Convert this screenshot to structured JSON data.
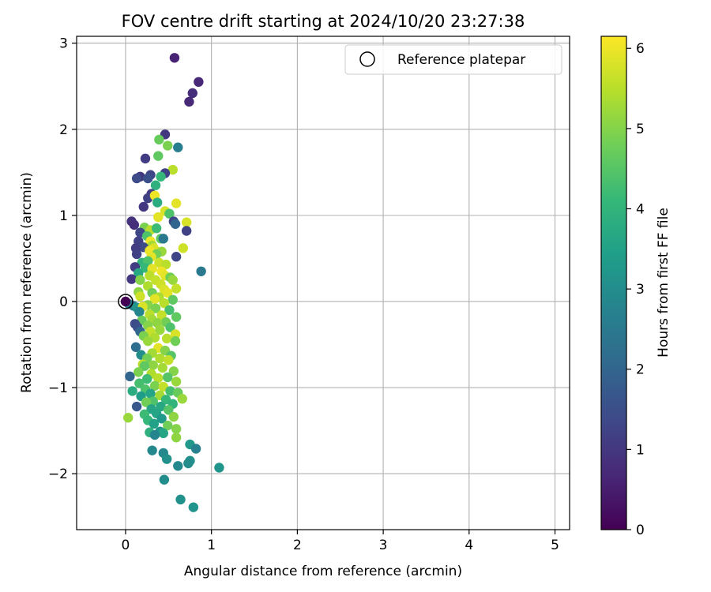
{
  "chart_data": {
    "type": "scatter",
    "title": "FOV centre drift starting at 2024/10/20 23:27:38",
    "xlabel": "Angular distance from reference (arcmin)",
    "ylabel": "Rotation from reference (arcmin)",
    "xlim": [
      -0.57,
      5.17
    ],
    "ylim": [
      -2.65,
      3.08
    ],
    "xticks": [
      0,
      1,
      2,
      3,
      4,
      5
    ],
    "xtick_labels": [
      "0",
      "1",
      "2",
      "3",
      "4",
      "5"
    ],
    "yticks": [
      -2,
      -1,
      0,
      1,
      2,
      3
    ],
    "ytick_labels": [
      "−2",
      "−1",
      "0",
      "1",
      "2",
      "3"
    ],
    "grid": true,
    "legend": {
      "placement": "top-right",
      "entries": [
        {
          "label": "Reference platepar",
          "marker": "open-circle"
        }
      ]
    },
    "reference": {
      "x": 0,
      "y": 0
    },
    "colorbar": {
      "label": "Hours from first FF file",
      "colormap": "viridis",
      "range": [
        0,
        6.15
      ],
      "ticks": [
        0,
        1,
        2,
        3,
        4,
        5,
        6
      ],
      "tick_labels": [
        "0",
        "1",
        "2",
        "3",
        "4",
        "5",
        "6"
      ],
      "stops": [
        "#440154",
        "#482878",
        "#3e4989",
        "#31688e",
        "#26828e",
        "#1f9e89",
        "#35b779",
        "#6ece58",
        "#b5de2b",
        "#fde725"
      ]
    },
    "points": [
      [
        0.57,
        2.83,
        0.6
      ],
      [
        0.85,
        2.55,
        0.7
      ],
      [
        0.78,
        2.42,
        0.8
      ],
      [
        0.74,
        2.32,
        0.7
      ],
      [
        0.46,
        1.94,
        1.0
      ],
      [
        0.39,
        1.88,
        4.7
      ],
      [
        0.49,
        1.81,
        4.9
      ],
      [
        0.61,
        1.79,
        2.6
      ],
      [
        0.38,
        1.69,
        4.6
      ],
      [
        0.23,
        1.66,
        1.1
      ],
      [
        0.55,
        1.53,
        5.5
      ],
      [
        0.46,
        1.49,
        1.2
      ],
      [
        0.29,
        1.47,
        1.3
      ],
      [
        0.17,
        1.45,
        1.0
      ],
      [
        0.41,
        1.45,
        4.1
      ],
      [
        0.13,
        1.43,
        1.4
      ],
      [
        0.26,
        1.43,
        1.5
      ],
      [
        0.35,
        1.35,
        3.9
      ],
      [
        0.3,
        1.25,
        1.1
      ],
      [
        0.26,
        1.2,
        1.2
      ],
      [
        0.34,
        1.23,
        6.0
      ],
      [
        0.37,
        1.15,
        3.8
      ],
      [
        0.59,
        1.14,
        5.9
      ],
      [
        0.21,
        1.1,
        1.0
      ],
      [
        0.46,
        1.05,
        5.8
      ],
      [
        0.51,
        1.02,
        4.4
      ],
      [
        0.38,
        0.98,
        5.9
      ],
      [
        0.56,
        0.93,
        1.3
      ],
      [
        0.58,
        0.9,
        2.0
      ],
      [
        0.07,
        0.93,
        0.9
      ],
      [
        0.1,
        0.89,
        0.8
      ],
      [
        0.22,
        0.86,
        4.9
      ],
      [
        0.29,
        0.83,
        5.5
      ],
      [
        0.36,
        0.85,
        4.2
      ],
      [
        0.71,
        0.92,
        5.8
      ],
      [
        0.71,
        0.82,
        1.2
      ],
      [
        0.17,
        0.8,
        1.3
      ],
      [
        0.25,
        0.76,
        4.4
      ],
      [
        0.41,
        0.73,
        4.6
      ],
      [
        0.44,
        0.73,
        2.5
      ],
      [
        0.29,
        0.7,
        6.0
      ],
      [
        0.15,
        0.7,
        1.2
      ],
      [
        0.31,
        0.65,
        5.3
      ],
      [
        0.33,
        0.62,
        5.8
      ],
      [
        0.21,
        0.63,
        1.4
      ],
      [
        0.12,
        0.62,
        1.1
      ],
      [
        0.67,
        0.62,
        5.7
      ],
      [
        0.28,
        0.59,
        6.0
      ],
      [
        0.42,
        0.58,
        5.2
      ],
      [
        0.13,
        0.55,
        1.2
      ],
      [
        0.36,
        0.55,
        4.8
      ],
      [
        0.3,
        0.52,
        5.9
      ],
      [
        0.59,
        0.52,
        1.3
      ],
      [
        0.19,
        0.45,
        4.0
      ],
      [
        0.26,
        0.47,
        4.4
      ],
      [
        0.39,
        0.45,
        5.7
      ],
      [
        0.47,
        0.43,
        5.5
      ],
      [
        0.11,
        0.4,
        1.1
      ],
      [
        0.23,
        0.39,
        4.1
      ],
      [
        0.31,
        0.38,
        5.9
      ],
      [
        0.42,
        0.35,
        6.0
      ],
      [
        0.88,
        0.35,
        2.5
      ],
      [
        0.15,
        0.33,
        3.7
      ],
      [
        0.28,
        0.3,
        5.5
      ],
      [
        0.46,
        0.3,
        5.9
      ],
      [
        0.52,
        0.28,
        4.8
      ],
      [
        0.07,
        0.26,
        1.0
      ],
      [
        0.17,
        0.25,
        5.0
      ],
      [
        0.35,
        0.25,
        5.6
      ],
      [
        0.55,
        0.25,
        5.2
      ],
      [
        0.41,
        0.2,
        5.7
      ],
      [
        0.26,
        0.18,
        5.4
      ],
      [
        0.59,
        0.15,
        5.6
      ],
      [
        0.45,
        0.14,
        5.8
      ],
      [
        0.15,
        0.11,
        5.1
      ],
      [
        0.31,
        0.1,
        4.8
      ],
      [
        0.49,
        0.1,
        5.9
      ],
      [
        0.17,
        0.06,
        5.7
      ],
      [
        0.39,
        0.05,
        5.4
      ],
      [
        0.55,
        0.02,
        4.6
      ],
      [
        0.34,
        0.03,
        5.9
      ],
      [
        0.45,
        -0.02,
        5.5
      ],
      [
        0.26,
        -0.04,
        5.0
      ],
      [
        0.04,
        -0.03,
        2.6
      ],
      [
        0.09,
        -0.05,
        2.4
      ],
      [
        0.13,
        -0.07,
        3.2
      ],
      [
        0.2,
        -0.06,
        5.8
      ],
      [
        0.35,
        -0.08,
        4.9
      ],
      [
        0.51,
        -0.1,
        4.3
      ],
      [
        0.16,
        -0.12,
        2.8
      ],
      [
        0.28,
        -0.15,
        5.5
      ],
      [
        0.42,
        -0.16,
        5.6
      ],
      [
        0.59,
        -0.18,
        4.6
      ],
      [
        0.31,
        -0.21,
        5.3
      ],
      [
        0.19,
        -0.22,
        4.7
      ],
      [
        0.47,
        -0.24,
        4.8
      ],
      [
        0.37,
        -0.25,
        5.1
      ],
      [
        0.11,
        -0.26,
        1.4
      ],
      [
        0.26,
        -0.28,
        5.0
      ],
      [
        0.14,
        -0.3,
        1.5
      ],
      [
        0.52,
        -0.3,
        4.4
      ],
      [
        0.4,
        -0.33,
        5.2
      ],
      [
        0.29,
        -0.35,
        5.6
      ],
      [
        0.17,
        -0.35,
        2.0
      ],
      [
        0.58,
        -0.38,
        5.8
      ],
      [
        0.21,
        -0.4,
        4.9
      ],
      [
        0.34,
        -0.42,
        5.4
      ],
      [
        0.48,
        -0.43,
        5.5
      ],
      [
        0.58,
        -0.46,
        4.8
      ],
      [
        0.26,
        -0.46,
        5.2
      ],
      [
        0.12,
        -0.53,
        2.2
      ],
      [
        0.38,
        -0.54,
        5.9
      ],
      [
        0.46,
        -0.57,
        5.0
      ],
      [
        0.31,
        -0.6,
        5.3
      ],
      [
        0.18,
        -0.62,
        3.0
      ],
      [
        0.53,
        -0.63,
        4.5
      ],
      [
        0.4,
        -0.66,
        5.4
      ],
      [
        0.25,
        -0.66,
        4.8
      ],
      [
        0.5,
        -0.68,
        5.6
      ],
      [
        0.2,
        -0.73,
        5.5
      ],
      [
        0.32,
        -0.74,
        5.1
      ],
      [
        0.43,
        -0.77,
        5.3
      ],
      [
        0.22,
        -0.75,
        4.6
      ],
      [
        0.56,
        -0.81,
        5.0
      ],
      [
        0.15,
        -0.82,
        4.9
      ],
      [
        0.3,
        -0.84,
        5.4
      ],
      [
        0.05,
        -0.87,
        2.0
      ],
      [
        0.38,
        -0.89,
        5.5
      ],
      [
        0.49,
        -0.88,
        4.5
      ],
      [
        0.25,
        -0.9,
        4.2
      ],
      [
        0.59,
        -0.93,
        5.2
      ],
      [
        0.16,
        -0.95,
        4.3
      ],
      [
        0.34,
        -0.98,
        4.9
      ],
      [
        0.44,
        -0.99,
        5.6
      ],
      [
        0.23,
        -1.02,
        4.4
      ],
      [
        0.08,
        -1.04,
        3.8
      ],
      [
        0.52,
        -1.04,
        4.3
      ],
      [
        0.61,
        -1.06,
        4.7
      ],
      [
        0.29,
        -1.07,
        3.6
      ],
      [
        0.4,
        -1.09,
        5.3
      ],
      [
        0.18,
        -1.1,
        3.4
      ],
      [
        0.66,
        -1.13,
        5.2
      ],
      [
        0.47,
        -1.14,
        4.1
      ],
      [
        0.32,
        -1.16,
        4.4
      ],
      [
        0.24,
        -1.17,
        4.8
      ],
      [
        0.55,
        -1.19,
        4.0
      ],
      [
        0.13,
        -1.22,
        1.7
      ],
      [
        0.41,
        -1.22,
        3.7
      ],
      [
        0.3,
        -1.25,
        3.6
      ],
      [
        0.5,
        -1.26,
        4.5
      ],
      [
        0.36,
        -1.3,
        3.6
      ],
      [
        0.22,
        -1.31,
        4.2
      ],
      [
        0.56,
        -1.34,
        5.1
      ],
      [
        0.42,
        -1.36,
        3.3
      ],
      [
        0.03,
        -1.35,
        5.2
      ],
      [
        0.26,
        -1.38,
        4.1
      ],
      [
        0.33,
        -1.42,
        3.5
      ],
      [
        0.49,
        -1.44,
        4.8
      ],
      [
        0.59,
        -1.48,
        5.0
      ],
      [
        0.4,
        -1.51,
        3.2
      ],
      [
        0.28,
        -1.52,
        3.9
      ],
      [
        0.44,
        -1.53,
        3.6
      ],
      [
        0.34,
        -1.55,
        2.8
      ],
      [
        0.59,
        -1.58,
        5.1
      ],
      [
        0.75,
        -1.66,
        3.3
      ],
      [
        0.82,
        -1.71,
        2.7
      ],
      [
        0.31,
        -1.73,
        2.9
      ],
      [
        0.44,
        -1.76,
        2.9
      ],
      [
        0.48,
        -1.83,
        3.1
      ],
      [
        0.75,
        -1.85,
        3.1
      ],
      [
        0.73,
        -1.88,
        3.0
      ],
      [
        0.61,
        -1.91,
        2.9
      ],
      [
        1.09,
        -1.93,
        3.2
      ],
      [
        0.45,
        -2.07,
        3.0
      ],
      [
        0.64,
        -2.3,
        3.1
      ],
      [
        0.79,
        -2.39,
        3.2
      ],
      [
        0.0,
        0.0,
        0.0
      ]
    ]
  }
}
